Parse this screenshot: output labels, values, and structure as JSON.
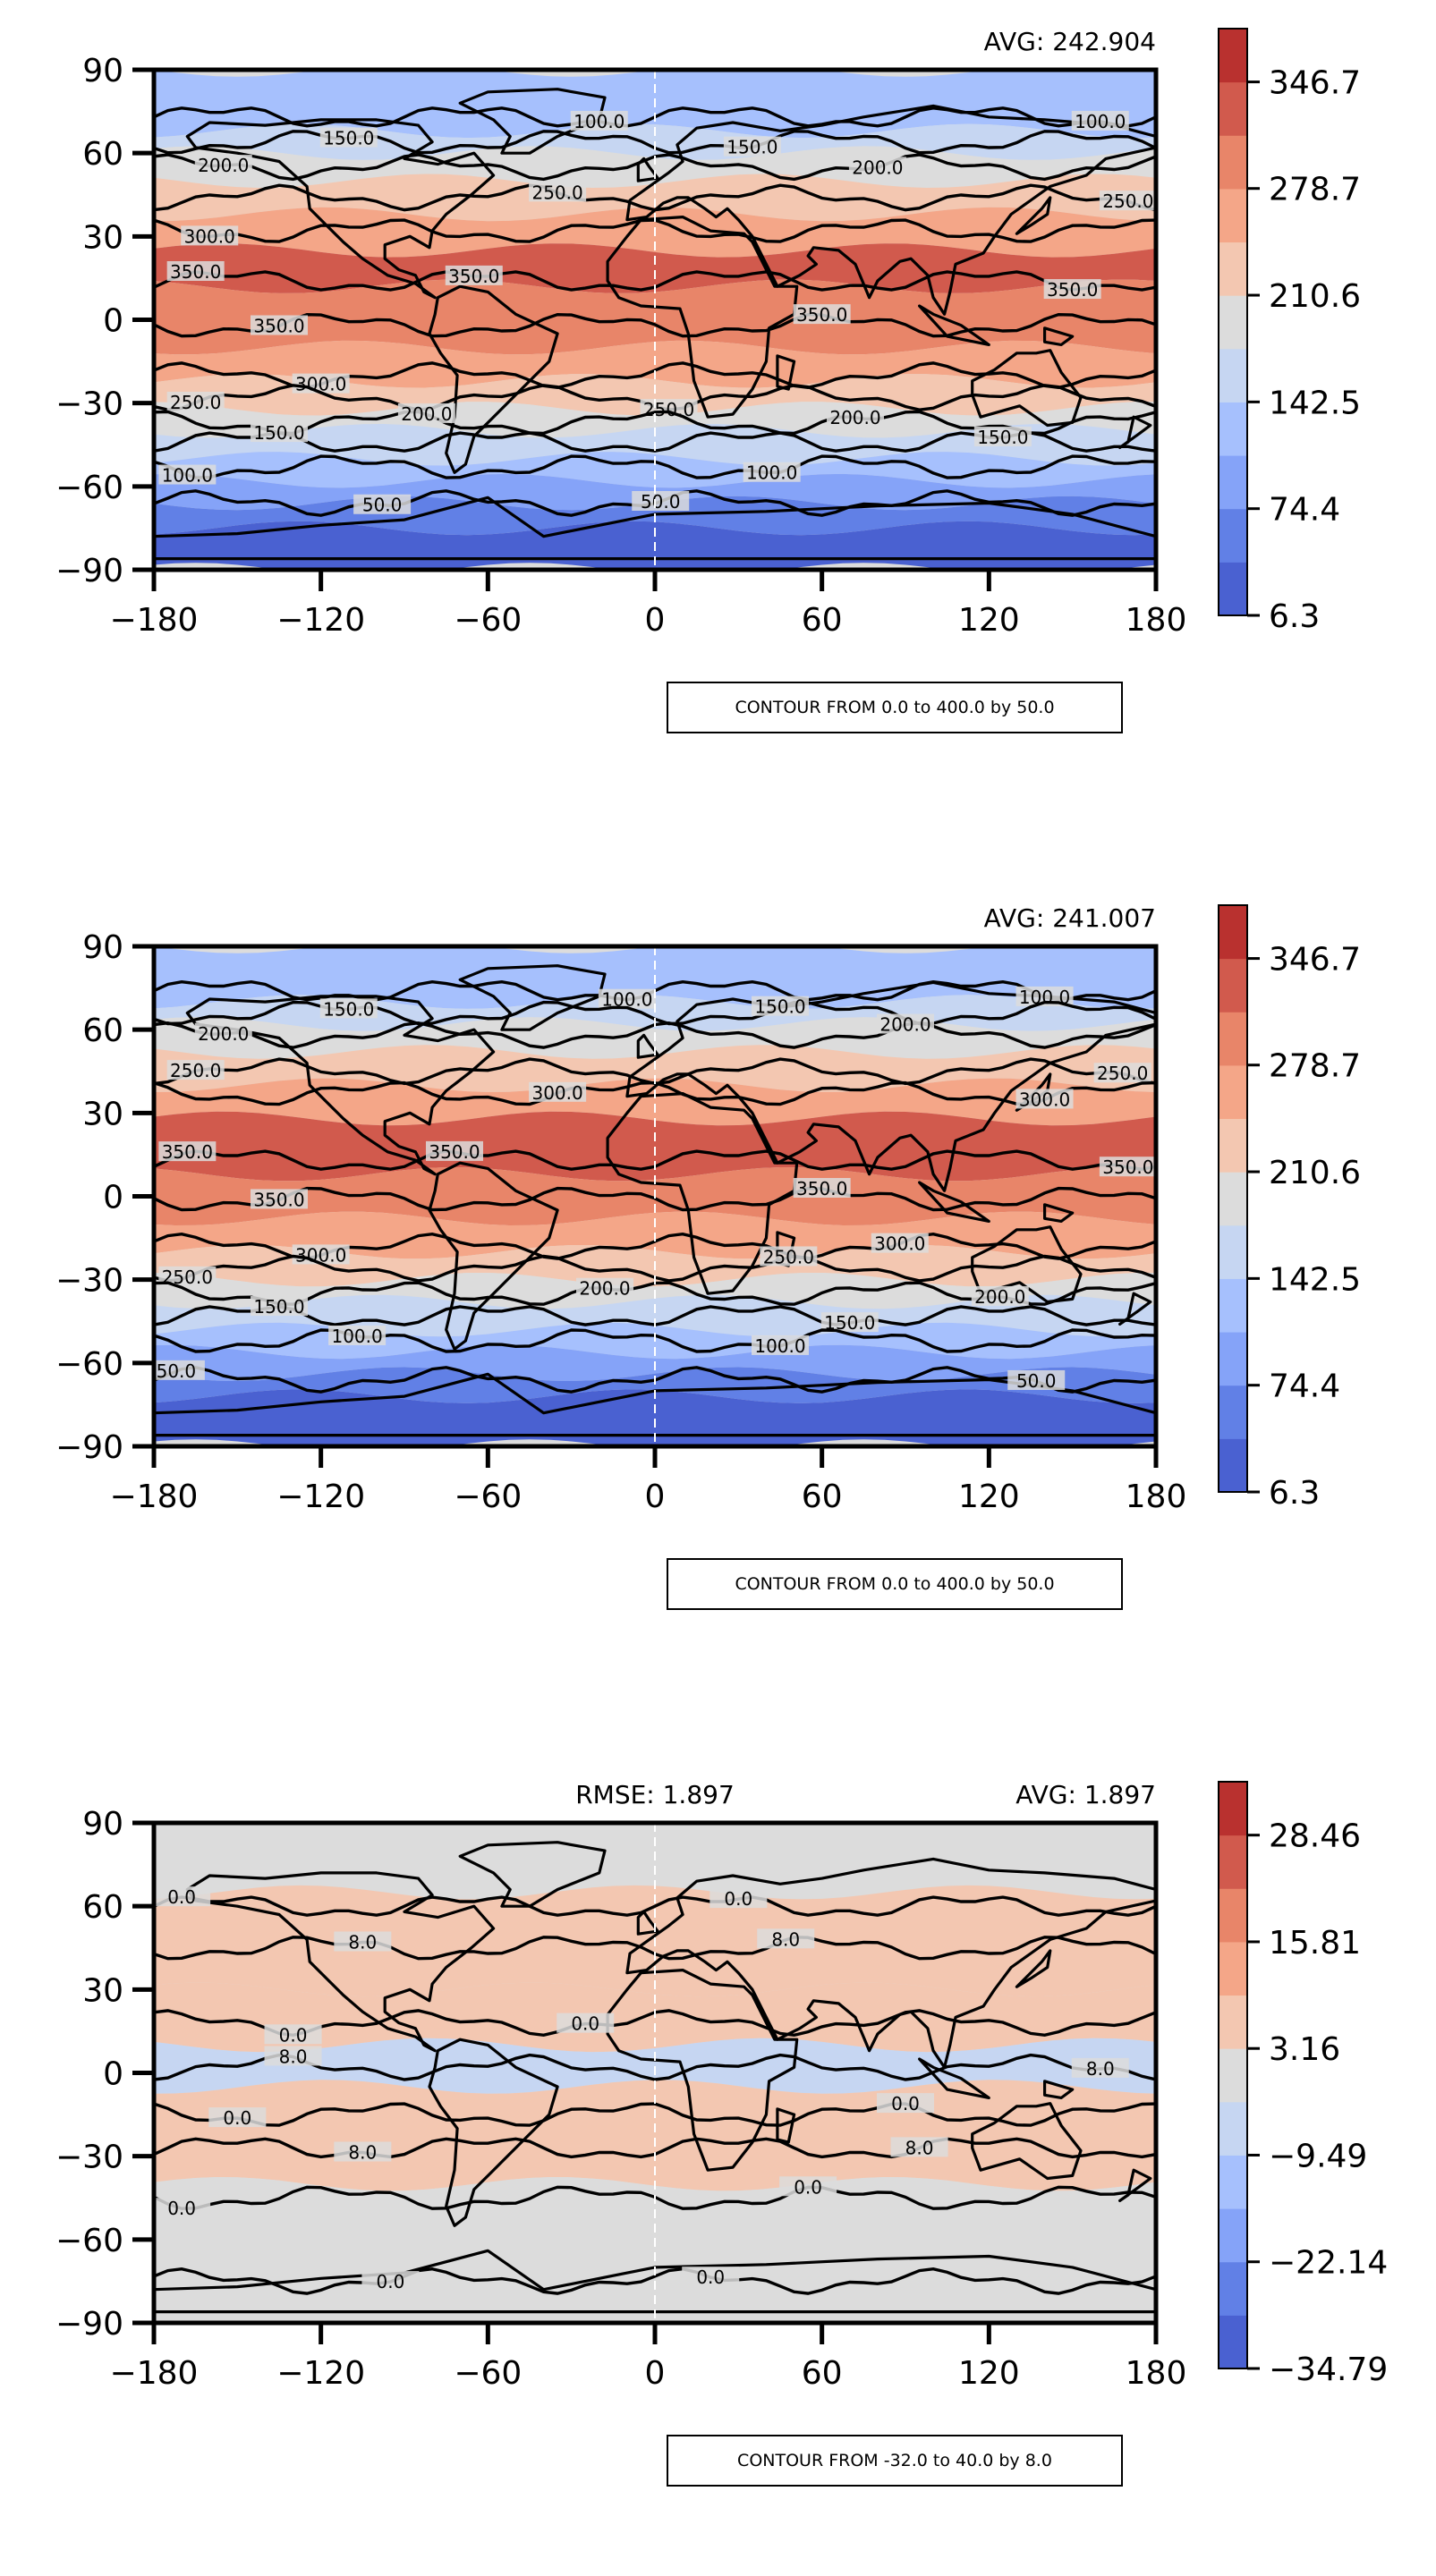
{
  "chart_data": [
    {
      "type": "contour-map",
      "avg_label": "AVG: 242.904",
      "rmse_label": "",
      "contour_label": "CONTOUR FROM 0.0 to 400.0 by 50.0",
      "x_ticks": [
        "−180",
        "−120",
        "−60",
        "0",
        "60",
        "120",
        "180"
      ],
      "y_ticks": [
        "90",
        "60",
        "30",
        "0",
        "−30",
        "−60",
        "−90"
      ],
      "xlim": [
        -180,
        180
      ],
      "ylim": [
        -90,
        90
      ],
      "colorbar_ticks": [
        "346.7",
        "278.7",
        "210.6",
        "142.5",
        "74.4",
        "6.3"
      ],
      "colorbar_range": [
        6.3,
        380.7
      ],
      "colors": [
        "#4a61d1",
        "#6180e6",
        "#85a3f8",
        "#a6c0fd",
        "#c6d6f2",
        "#dcdcdc",
        "#f3c7b1",
        "#f4a688",
        "#e88569",
        "#d15a4d",
        "#b9312f"
      ],
      "bands": [
        {
          "lat": [
            68,
            90
          ],
          "level": 3
        },
        {
          "lat": [
            60,
            68
          ],
          "level": 4
        },
        {
          "lat": [
            50,
            60
          ],
          "level": 5
        },
        {
          "lat": [
            38,
            50
          ],
          "level": 6
        },
        {
          "lat": [
            25,
            38
          ],
          "level": 7
        },
        {
          "lat": [
            12,
            25
          ],
          "level": 9
        },
        {
          "lat": [
            -10,
            12
          ],
          "level": 8
        },
        {
          "lat": [
            -22,
            -10
          ],
          "level": 7
        },
        {
          "lat": [
            -32,
            -22
          ],
          "level": 6
        },
        {
          "lat": [
            -40,
            -32
          ],
          "level": 5
        },
        {
          "lat": [
            -50,
            -40
          ],
          "level": 4
        },
        {
          "lat": [
            -58,
            -50
          ],
          "level": 3
        },
        {
          "lat": [
            -66,
            -58
          ],
          "level": 2
        },
        {
          "lat": [
            -75,
            -66
          ],
          "level": 1
        },
        {
          "lat": [
            -90,
            -75
          ],
          "level": 0
        }
      ],
      "contours": [
        {
          "value": "100.0",
          "lat": 73,
          "label_lon": [
            -20,
            160
          ]
        },
        {
          "value": "150.0",
          "lat": 64,
          "label_lon": [
            -110,
            35
          ]
        },
        {
          "value": "200.0",
          "lat": 55,
          "label_lon": [
            -155,
            80
          ]
        },
        {
          "value": "250.0",
          "lat": 44,
          "label_lon": [
            -35,
            170
          ]
        },
        {
          "value": "300.0",
          "lat": 32,
          "label_lon": [
            -160
          ]
        },
        {
          "value": "350.0",
          "lat": 14,
          "label_lon": [
            -165,
            -65,
            150
          ]
        },
        {
          "value": "350.0",
          "lat": -2,
          "label_lon": [
            -135,
            60
          ]
        },
        {
          "value": "300.0",
          "lat": -20,
          "label_lon": [
            -120
          ]
        },
        {
          "value": "250.0",
          "lat": -28,
          "label_lon": [
            -165,
            5
          ]
        },
        {
          "value": "200.0",
          "lat": -37,
          "label_lon": [
            -82,
            72
          ]
        },
        {
          "value": "150.0",
          "lat": -44,
          "label_lon": [
            -135,
            125
          ]
        },
        {
          "value": "100.0",
          "lat": -53,
          "label_lon": [
            -168,
            42
          ]
        },
        {
          "value": "50.0",
          "lat": -66,
          "label_lon": [
            -98,
            2
          ]
        }
      ]
    },
    {
      "type": "contour-map",
      "avg_label": "AVG: 241.007",
      "rmse_label": "",
      "contour_label": "CONTOUR FROM 0.0 to 400.0 by 50.0",
      "x_ticks": [
        "−180",
        "−120",
        "−60",
        "0",
        "60",
        "120",
        "180"
      ],
      "y_ticks": [
        "90",
        "60",
        "30",
        "0",
        "−30",
        "−60",
        "−90"
      ],
      "xlim": [
        -180,
        180
      ],
      "ylim": [
        -90,
        90
      ],
      "colorbar_ticks": [
        "346.7",
        "278.7",
        "210.6",
        "142.5",
        "74.4",
        "6.3"
      ],
      "colorbar_range": [
        6.3,
        380.7
      ],
      "colors": [
        "#4a61d1",
        "#6180e6",
        "#85a3f8",
        "#a6c0fd",
        "#c6d6f2",
        "#dcdcdc",
        "#f3c7b1",
        "#f4a688",
        "#e88569",
        "#d15a4d",
        "#b9312f"
      ],
      "bands": [
        {
          "lat": [
            70,
            90
          ],
          "level": 3
        },
        {
          "lat": [
            62,
            70
          ],
          "level": 4
        },
        {
          "lat": [
            52,
            62
          ],
          "level": 5
        },
        {
          "lat": [
            40,
            52
          ],
          "level": 6
        },
        {
          "lat": [
            28,
            40
          ],
          "level": 7
        },
        {
          "lat": [
            8,
            28
          ],
          "level": 9
        },
        {
          "lat": [
            -8,
            8
          ],
          "level": 8
        },
        {
          "lat": [
            -20,
            -8
          ],
          "level": 7
        },
        {
          "lat": [
            -30,
            -20
          ],
          "level": 6
        },
        {
          "lat": [
            -38,
            -30
          ],
          "level": 5
        },
        {
          "lat": [
            -48,
            -38
          ],
          "level": 4
        },
        {
          "lat": [
            -56,
            -48
          ],
          "level": 3
        },
        {
          "lat": [
            -64,
            -56
          ],
          "level": 2
        },
        {
          "lat": [
            -72,
            -64
          ],
          "level": 1
        },
        {
          "lat": [
            -90,
            -72
          ],
          "level": 0
        }
      ],
      "contours": [
        {
          "value": "100.0",
          "lat": 74,
          "label_lon": [
            -10,
            140
          ]
        },
        {
          "value": "150.0",
          "lat": 66,
          "label_lon": [
            -110,
            45
          ]
        },
        {
          "value": "200.0",
          "lat": 58,
          "label_lon": [
            -155,
            90
          ]
        },
        {
          "value": "250.0",
          "lat": 45,
          "label_lon": [
            -165,
            168
          ]
        },
        {
          "value": "300.0",
          "lat": 37,
          "label_lon": [
            -35,
            140
          ]
        },
        {
          "value": "350.0",
          "lat": 13,
          "label_lon": [
            -168,
            -72,
            170
          ]
        },
        {
          "value": "350.0",
          "lat": -1,
          "label_lon": [
            -135,
            60
          ]
        },
        {
          "value": "300.0",
          "lat": -18,
          "label_lon": [
            -120,
            88
          ]
        },
        {
          "value": "250.0",
          "lat": -26,
          "label_lon": [
            -168,
            48
          ]
        },
        {
          "value": "200.0",
          "lat": -35,
          "label_lon": [
            -18,
            124
          ]
        },
        {
          "value": "150.0",
          "lat": -43,
          "label_lon": [
            -135,
            70
          ]
        },
        {
          "value": "100.0",
          "lat": -52,
          "label_lon": [
            -107,
            45
          ]
        },
        {
          "value": "50.0",
          "lat": -66,
          "label_lon": [
            -172,
            137
          ]
        }
      ]
    },
    {
      "type": "contour-map",
      "avg_label": "AVG: 1.897",
      "rmse_label": "RMSE: 1.897",
      "contour_label": "CONTOUR FROM -32.0 to 40.0 by 8.0",
      "x_ticks": [
        "−180",
        "−120",
        "−60",
        "0",
        "60",
        "120",
        "180"
      ],
      "y_ticks": [
        "90",
        "60",
        "30",
        "0",
        "−30",
        "−60",
        "−90"
      ],
      "xlim": [
        -180,
        180
      ],
      "ylim": [
        -90,
        90
      ],
      "colorbar_ticks": [
        "28.46",
        "15.81",
        "3.16",
        "−9.49",
        "−22.14",
        "−34.79"
      ],
      "colorbar_range": [
        -34.79,
        34.79
      ],
      "colors": [
        "#4a61d1",
        "#6180e6",
        "#85a3f8",
        "#a6c0fd",
        "#c6d6f2",
        "#dcdcdc",
        "#f3c7b1",
        "#f4a688",
        "#e88569",
        "#d15a4d",
        "#b9312f"
      ],
      "bands": [
        {
          "lat": [
            65,
            90
          ],
          "level": 5
        },
        {
          "lat": [
            30,
            65
          ],
          "level": 6
        },
        {
          "lat": [
            10,
            30
          ],
          "level": 6
        },
        {
          "lat": [
            -5,
            10
          ],
          "level": 4
        },
        {
          "lat": [
            -40,
            -5
          ],
          "level": 6
        },
        {
          "lat": [
            -90,
            -40
          ],
          "level": 5
        }
      ],
      "contours": [
        {
          "value": "0.0",
          "lat": 60,
          "label_lon": [
            -170,
            30
          ]
        },
        {
          "value": "8.0",
          "lat": 45,
          "label_lon": [
            -105,
            47
          ]
        },
        {
          "value": "0.0",
          "lat": 18,
          "label_lon": [
            -130,
            -25
          ]
        },
        {
          "value": "8.0",
          "lat": 2,
          "label_lon": [
            -130,
            160
          ]
        },
        {
          "value": "0.0",
          "lat": -15,
          "label_lon": [
            -150,
            90
          ]
        },
        {
          "value": "8.0",
          "lat": -27,
          "label_lon": [
            -105,
            95
          ]
        },
        {
          "value": "0.0",
          "lat": -45,
          "label_lon": [
            -170,
            55
          ]
        },
        {
          "value": "0.0",
          "lat": -75,
          "label_lon": [
            -95,
            20
          ]
        }
      ]
    }
  ]
}
